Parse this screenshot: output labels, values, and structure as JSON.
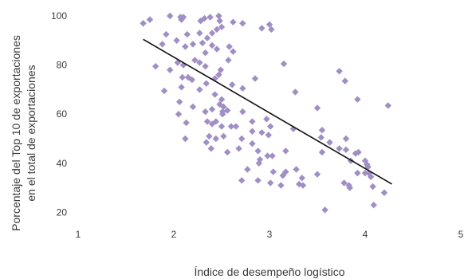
{
  "chart_data": {
    "type": "scatter",
    "title": "",
    "xlabel": "Índice de desempeño logístico",
    "ylabel_lines": [
      "Porcentaje del Top 10 de exportaciones",
      "en el total de exportaciones"
    ],
    "xlim": [
      1,
      5
    ],
    "ylim": [
      15,
      103
    ],
    "x_ticks": [
      "1",
      "2",
      "3",
      "4",
      "5"
    ],
    "y_ticks": [
      "20",
      "40",
      "60",
      "80",
      "100"
    ],
    "grid": false,
    "marker": "diamond",
    "colors": {
      "marker": "#a08fc4",
      "trendline": "#111111",
      "text": "#3a3a3a"
    },
    "trendline": {
      "x": [
        1.68,
        4.28
      ],
      "y": [
        90.5,
        31.5
      ]
    },
    "points": [
      [
        1.68,
        97
      ],
      [
        1.75,
        98.5
      ],
      [
        1.96,
        100
      ],
      [
        2.07,
        99.5
      ],
      [
        2.08,
        98.5
      ],
      [
        2.1,
        99.5
      ],
      [
        2.28,
        98
      ],
      [
        2.32,
        99
      ],
      [
        2.38,
        99.5
      ],
      [
        2.47,
        100
      ],
      [
        2.48,
        98
      ],
      [
        2.62,
        97.5
      ],
      [
        2.72,
        97
      ],
      [
        3.0,
        96.5
      ],
      [
        2.92,
        95
      ],
      [
        3.02,
        94.5
      ],
      [
        2.45,
        94.5
      ],
      [
        2.5,
        95.5
      ],
      [
        2.4,
        93
      ],
      [
        2.35,
        91
      ],
      [
        2.27,
        93
      ],
      [
        2.14,
        92.5
      ],
      [
        1.92,
        92.5
      ],
      [
        2.03,
        90
      ],
      [
        1.88,
        88.5
      ],
      [
        2.12,
        87.5
      ],
      [
        2.2,
        88.5
      ],
      [
        2.3,
        89
      ],
      [
        2.4,
        88
      ],
      [
        2.45,
        86.5
      ],
      [
        2.58,
        87.5
      ],
      [
        2.62,
        85.5
      ],
      [
        2.33,
        85
      ],
      [
        2.22,
        82
      ],
      [
        2.57,
        82
      ],
      [
        2.04,
        81
      ],
      [
        2.1,
        80
      ],
      [
        2.27,
        81
      ],
      [
        2.33,
        79.5
      ],
      [
        1.81,
        79.5
      ],
      [
        1.96,
        78
      ],
      [
        2.49,
        78
      ],
      [
        2.47,
        76
      ],
      [
        2.43,
        74.5
      ],
      [
        2.15,
        75
      ],
      [
        2.09,
        75
      ],
      [
        2.19,
        74
      ],
      [
        2.34,
        72.5
      ],
      [
        2.61,
        72
      ],
      [
        2.72,
        70.5
      ],
      [
        2.85,
        74.5
      ],
      [
        3.15,
        80.5
      ],
      [
        3.73,
        77.5
      ],
      [
        3.79,
        73.5
      ],
      [
        3.27,
        69
      ],
      [
        1.9,
        69.5
      ],
      [
        2.08,
        71
      ],
      [
        2.27,
        70
      ],
      [
        2.43,
        68
      ],
      [
        2.5,
        66
      ],
      [
        2.48,
        64
      ],
      [
        2.52,
        63
      ],
      [
        2.51,
        61
      ],
      [
        2.51,
        60
      ],
      [
        2.56,
        61.5
      ],
      [
        2.72,
        61
      ],
      [
        2.4,
        62
      ],
      [
        2.33,
        61
      ],
      [
        2.2,
        63
      ],
      [
        2.06,
        65
      ],
      [
        2.05,
        60
      ],
      [
        2.13,
        56.5
      ],
      [
        2.35,
        57
      ],
      [
        2.4,
        56
      ],
      [
        2.44,
        57
      ],
      [
        2.5,
        55
      ],
      [
        2.6,
        55
      ],
      [
        2.65,
        55
      ],
      [
        2.82,
        57
      ],
      [
        2.97,
        58
      ],
      [
        3.01,
        55
      ],
      [
        2.82,
        53
      ],
      [
        2.92,
        52.5
      ],
      [
        2.99,
        51.5
      ],
      [
        2.71,
        50
      ],
      [
        2.52,
        51
      ],
      [
        2.44,
        50
      ],
      [
        2.37,
        51
      ],
      [
        2.34,
        48.5
      ],
      [
        2.39,
        46
      ],
      [
        2.12,
        50
      ],
      [
        2.56,
        44.5
      ],
      [
        2.68,
        46
      ],
      [
        2.82,
        48
      ],
      [
        2.88,
        45
      ],
      [
        2.98,
        43
      ],
      [
        3.03,
        43
      ],
      [
        3.17,
        45
      ],
      [
        3.25,
        54
      ],
      [
        3.5,
        62.5
      ],
      [
        3.55,
        53.5
      ],
      [
        3.54,
        50.5
      ],
      [
        3.55,
        44.5
      ],
      [
        3.63,
        48.5
      ],
      [
        3.73,
        46
      ],
      [
        3.8,
        50
      ],
      [
        3.8,
        45.5
      ],
      [
        3.85,
        41
      ],
      [
        3.9,
        44
      ],
      [
        3.92,
        66
      ],
      [
        3.93,
        44.5
      ],
      [
        4.0,
        41
      ],
      [
        4.02,
        39.5
      ],
      [
        4.03,
        38.5
      ],
      [
        4.04,
        36
      ],
      [
        4.0,
        36
      ],
      [
        4.06,
        34.5
      ],
      [
        3.92,
        36
      ],
      [
        3.78,
        32
      ],
      [
        3.83,
        31
      ],
      [
        3.84,
        30
      ],
      [
        4.08,
        30.5
      ],
      [
        4.2,
        28
      ],
      [
        4.09,
        23
      ],
      [
        3.58,
        21
      ],
      [
        4.24,
        63.5
      ],
      [
        2.71,
        33
      ],
      [
        2.77,
        37.5
      ],
      [
        2.88,
        33
      ],
      [
        2.89,
        40
      ],
      [
        2.9,
        41.5
      ],
      [
        3.04,
        36.5
      ],
      [
        3.01,
        32
      ],
      [
        3.12,
        31
      ],
      [
        3.14,
        35
      ],
      [
        3.17,
        36.5
      ],
      [
        3.28,
        37.5
      ],
      [
        3.31,
        31.5
      ],
      [
        3.35,
        31
      ],
      [
        3.34,
        34
      ],
      [
        3.5,
        35.5
      ]
    ]
  }
}
